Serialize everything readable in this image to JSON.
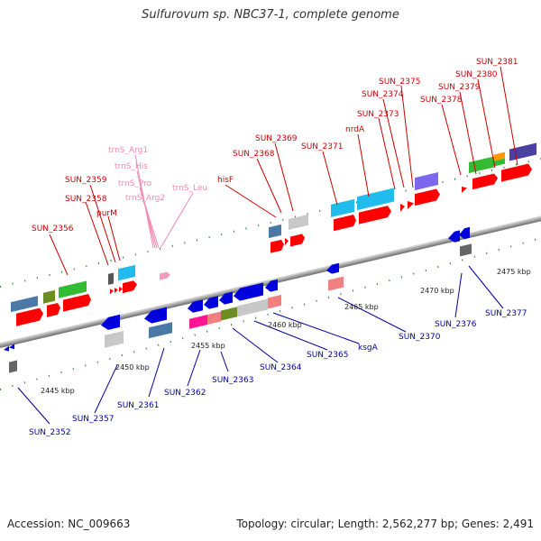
{
  "title": "Sulfurovum sp. NBC37-1, complete genome",
  "footer": {
    "accession": "Accession: NC_009663",
    "summary": "Topology: circular; Length: 2,562,277 bp; Genes: 2,491"
  },
  "top_labels": [
    "SUN_2356",
    "SUN_2358",
    "SUN_2359",
    "purM",
    "hisF",
    "SUN_2368",
    "SUN_2369",
    "SUN_2371",
    "nrdA",
    "SUN_2373",
    "SUN_2374",
    "SUN_2375",
    "SUN_2378",
    "SUN_2379",
    "SUN_2380",
    "SUN_2381"
  ],
  "trna_labels": [
    "trnS_Arg1",
    "trnS_His",
    "trnS_Pro",
    "trnS_Arg2",
    "trnS_Leu"
  ],
  "bottom_labels": [
    "SUN_2352",
    "SUN_2357",
    "SUN_2361",
    "SUN_2362",
    "SUN_2363",
    "SUN_2364",
    "SUN_2365",
    "ksgA",
    "SUN_2370",
    "SUN_2376",
    "SUN_2377"
  ],
  "kbp_ticks": [
    "2445 kbp",
    "2450 kbp",
    "2455 kbp",
    "2460 kbp",
    "2465 kbp",
    "2470 kbp",
    "2475 kbp"
  ]
}
